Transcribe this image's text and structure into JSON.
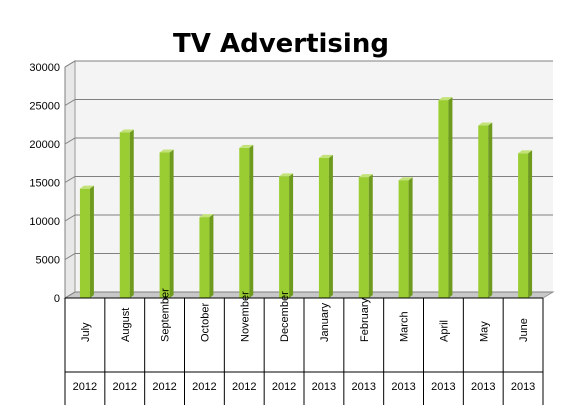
{
  "chart_data": {
    "type": "bar",
    "title": "TV Advertising",
    "xlabel": "",
    "ylabel": "",
    "ylim": [
      0,
      30000
    ],
    "yticks": [
      "0",
      "5000",
      "10000",
      "15000",
      "20000",
      "25000",
      "30000"
    ],
    "categories": [
      "July",
      "August",
      "September",
      "October",
      "November",
      "December",
      "January",
      "February",
      "March",
      "April",
      "May",
      "June"
    ],
    "years": [
      "2012",
      "2012",
      "2012",
      "2012",
      "2012",
      "2012",
      "2013",
      "2013",
      "2013",
      "2013",
      "2013",
      "2013"
    ],
    "values": [
      14200,
      21500,
      18900,
      10500,
      19500,
      15800,
      18200,
      15700,
      15300,
      25700,
      22400,
      18800
    ],
    "grid": true,
    "colors": {
      "bar_front": "#9ACD32",
      "bar_side": "#6E9A1E",
      "bar_top": "#C3E37A",
      "grid": "#808080",
      "wall": "#F4F4F4",
      "floor": "#C8C8C8"
    }
  }
}
